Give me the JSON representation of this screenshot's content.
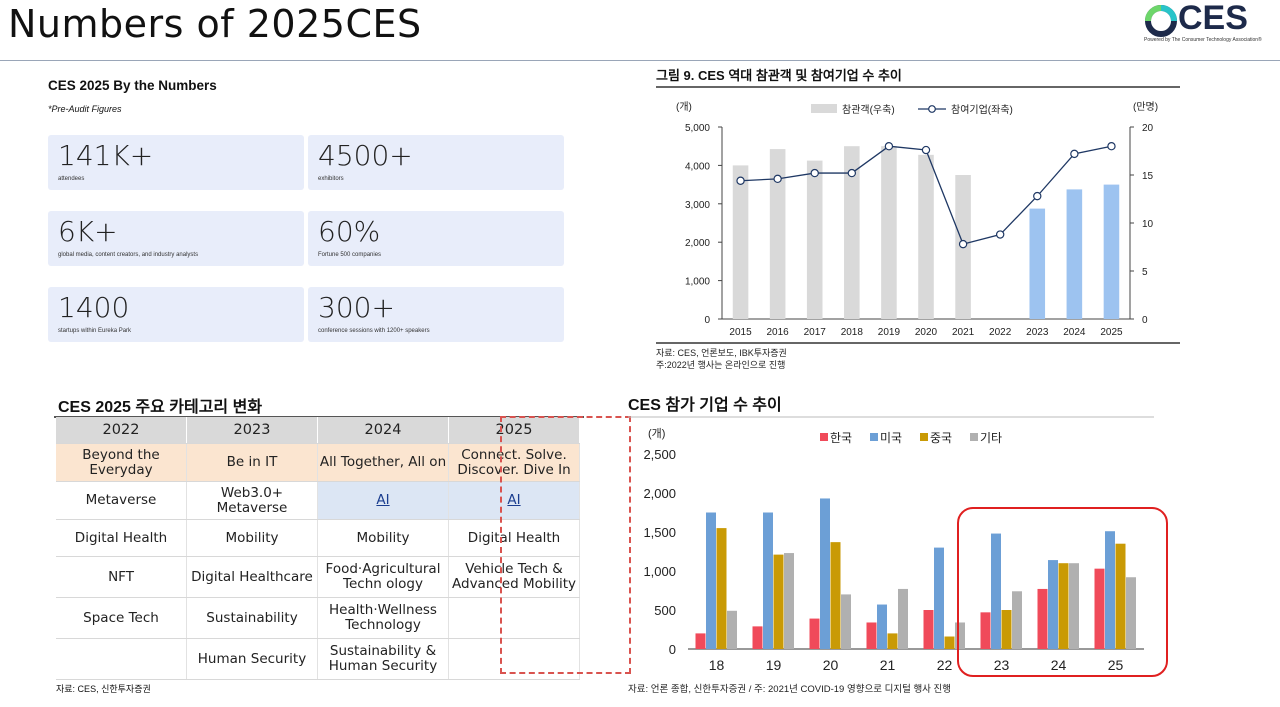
{
  "page": {
    "title": "Numbers of 2025CES",
    "logo_text": "CES",
    "logo_sub": "Powered by The Consumer Technology Association®"
  },
  "stats": {
    "title": "CES 2025 By the Numbers",
    "note": "*Pre-Audit Figures",
    "cards": [
      {
        "value": "141K+",
        "label": "attendees"
      },
      {
        "value": "4500+",
        "label": "exhibitors"
      },
      {
        "value": "6K+",
        "label": "global media, content creators, and industry analysts"
      },
      {
        "value": "60%",
        "label": "Fortune 500 companies"
      },
      {
        "value": "1400",
        "label": "startups within Eureka Park"
      },
      {
        "value": "300+",
        "label": "conference sessions with 1200+ speakers"
      }
    ]
  },
  "colors": {
    "attendee_bar": "#d9d9d9",
    "attendee_bar_highlight": "#9dc3f0",
    "korea": "#f04a5a",
    "usa": "#6c9fd6",
    "china": "#c99a05",
    "other": "#b0b0b0",
    "highlight_box": "#e02020"
  },
  "chart_data": [
    {
      "type": "bar",
      "title": "그림 9. CES 역대 참관객 및 참여기업 수 추이",
      "ylabel": "(개)",
      "y2label": "(만명)",
      "categories": [
        "2015",
        "2016",
        "2017",
        "2018",
        "2019",
        "2020",
        "2021",
        "2022",
        "2023",
        "2024",
        "2025"
      ],
      "ylim": [
        0,
        5000
      ],
      "yticks": [
        "0",
        "1,000",
        "2,000",
        "3,000",
        "4,000",
        "5,000"
      ],
      "y2lim": [
        0,
        20
      ],
      "y2ticks": [
        "0",
        "5",
        "10",
        "15",
        "20"
      ],
      "series": [
        {
          "name": "참관객(우축)",
          "kind": "bar",
          "axis": "right",
          "values": [
            16,
            17.7,
            16.5,
            18,
            18,
            17.1,
            15,
            null,
            11.5,
            13.5,
            14
          ]
        },
        {
          "name": "참여기업(좌축)",
          "kind": "line",
          "axis": "left",
          "values": [
            3600,
            3650,
            3800,
            3800,
            4500,
            4400,
            1950,
            2200,
            3200,
            4300,
            4500
          ]
        }
      ],
      "source": "자료: CES, 언론보도, IBK투자증권",
      "note": "주:2022년 행사는 온라인으로 진행"
    },
    {
      "type": "bar",
      "title": "CES 참가 기업 수 추이",
      "ylabel": "(개)",
      "categories": [
        "18",
        "19",
        "20",
        "21",
        "22",
        "23",
        "24",
        "25"
      ],
      "ylim": [
        0,
        2500
      ],
      "yticks": [
        "0",
        "500",
        "1,000",
        "1,500",
        "2,000",
        "2,500"
      ],
      "series": [
        {
          "name": "한국",
          "values": [
            200,
            290,
            390,
            340,
            500,
            470,
            770,
            1030
          ]
        },
        {
          "name": "미국",
          "values": [
            1750,
            1750,
            1930,
            570,
            1300,
            1480,
            1140,
            1510
          ]
        },
        {
          "name": "중국",
          "values": [
            1550,
            1210,
            1370,
            200,
            160,
            500,
            1100,
            1350
          ]
        },
        {
          "name": "기타",
          "values": [
            490,
            1230,
            700,
            770,
            340,
            740,
            1100,
            920
          ]
        }
      ],
      "source": "자료: 언론 종합, 신한투자증권 / 주: 2021년 COVID-19 영향으로 디지털 행사 진행"
    }
  ],
  "categories_table": {
    "title": "CES 2025 주요 카테고리 변화",
    "years": [
      "2022",
      "2023",
      "2024",
      "2025"
    ],
    "themes": [
      "Beyond the Everyday",
      "Be in IT",
      "All Together, All on",
      "Connect. Solve. Discover. Dive In"
    ],
    "rows": [
      [
        "Metaverse",
        "Web3.0+ Metaverse",
        "AI",
        "AI"
      ],
      [
        "Digital Health",
        "Mobility",
        "Mobility",
        "Digital Health"
      ],
      [
        "NFT",
        "Digital Healthcare",
        "Food·Agricultural Techn ology",
        "Vehicle Tech & Advanced Mobility"
      ],
      [
        "Space Tech",
        "Sustainability",
        "Health·Wellness Technology",
        ""
      ],
      [
        "",
        "Human Security",
        "Sustainability & Human Security",
        ""
      ]
    ],
    "source": "자료: CES, 신한투자증권"
  }
}
